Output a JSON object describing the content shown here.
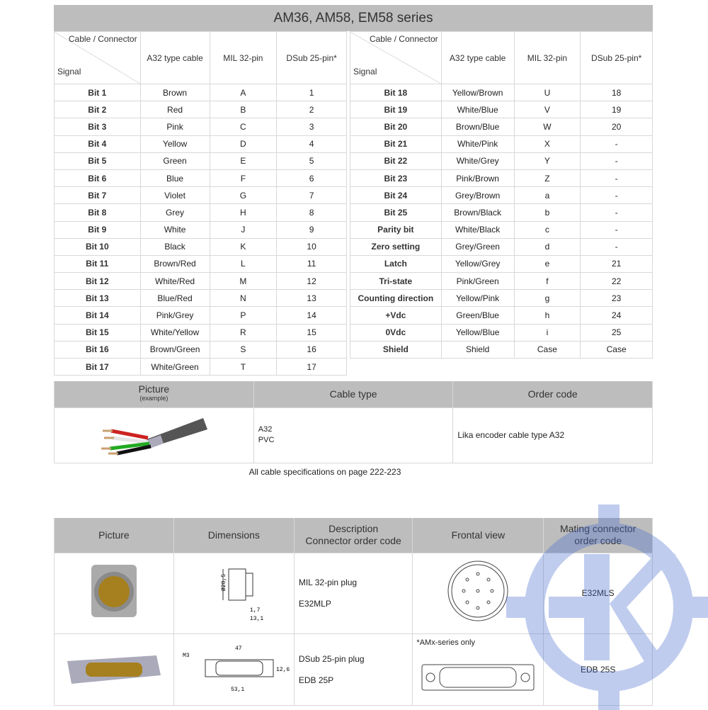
{
  "title": "AM36, AM58, EM58 series",
  "pinout": {
    "header": {
      "cable_connector": "Cable / Connector",
      "signal": "Signal",
      "a32": "A32 type cable",
      "mil": "MIL 32-pin",
      "dsub": "DSub 25-pin*"
    },
    "left_rows": [
      [
        "Bit 1",
        "Brown",
        "A",
        "1"
      ],
      [
        "Bit 2",
        "Red",
        "B",
        "2"
      ],
      [
        "Bit 3",
        "Pink",
        "C",
        "3"
      ],
      [
        "Bit 4",
        "Yellow",
        "D",
        "4"
      ],
      [
        "Bit 5",
        "Green",
        "E",
        "5"
      ],
      [
        "Bit 6",
        "Blue",
        "F",
        "6"
      ],
      [
        "Bit 7",
        "Violet",
        "G",
        "7"
      ],
      [
        "Bit 8",
        "Grey",
        "H",
        "8"
      ],
      [
        "Bit 9",
        "White",
        "J",
        "9"
      ],
      [
        "Bit 10",
        "Black",
        "K",
        "10"
      ],
      [
        "Bit 11",
        "Brown/Red",
        "L",
        "11"
      ],
      [
        "Bit 12",
        "White/Red",
        "M",
        "12"
      ],
      [
        "Bit 13",
        "Blue/Red",
        "N",
        "13"
      ],
      [
        "Bit 14",
        "Pink/Grey",
        "P",
        "14"
      ],
      [
        "Bit 15",
        "White/Yellow",
        "R",
        "15"
      ],
      [
        "Bit 16",
        "Brown/Green",
        "S",
        "16"
      ],
      [
        "Bit 17",
        "White/Green",
        "T",
        "17"
      ]
    ],
    "right_rows": [
      [
        "Bit 18",
        "Yellow/Brown",
        "U",
        "18"
      ],
      [
        "Bit 19",
        "White/Blue",
        "V",
        "19"
      ],
      [
        "Bit 20",
        "Brown/Blue",
        "W",
        "20"
      ],
      [
        "Bit 21",
        "White/Pink",
        "X",
        "-"
      ],
      [
        "Bit 22",
        "White/Grey",
        "Y",
        "-"
      ],
      [
        "Bit 23",
        "Pink/Brown",
        "Z",
        "-"
      ],
      [
        "Bit 24",
        "Grey/Brown",
        "a",
        "-"
      ],
      [
        "Bit 25",
        "Brown/Black",
        "b",
        "-"
      ],
      [
        "Parity bit",
        "White/Black",
        "c",
        "-"
      ],
      [
        "Zero setting",
        "Grey/Green",
        "d",
        "-"
      ],
      [
        "Latch",
        "Yellow/Grey",
        "e",
        "21"
      ],
      [
        "Tri-state",
        "Pink/Green",
        "f",
        "22"
      ],
      [
        "Counting direction",
        "Yellow/Pink",
        "g",
        "23"
      ],
      [
        "+Vdc",
        "Green/Blue",
        "h",
        "24"
      ],
      [
        "0Vdc",
        "Yellow/Blue",
        "i",
        "25"
      ],
      [
        "Shield",
        "Shield",
        "Case",
        "Case"
      ]
    ]
  },
  "cable": {
    "header": {
      "picture": "Picture",
      "picture_sub": "(example)",
      "cable_type": "Cable type",
      "order_code": "Order code"
    },
    "type_line1": "A32",
    "type_line2": "PVC",
    "order": "Lika encoder cable type A32",
    "note": "All cable specifications on page 222-223"
  },
  "connectors": {
    "header": {
      "picture": "Picture",
      "dimensions": "Dimensions",
      "desc1": "Description",
      "desc2": "Connector order code",
      "frontal": "Frontal view",
      "mating1": "Mating connector",
      "mating2": "order code"
    },
    "rows": [
      {
        "desc": "MIL 32-pin plug",
        "code": "E32MLP",
        "mating": "E32MLS",
        "dims": [
          "Ø28,5",
          "1,7",
          "13,1"
        ],
        "note": ""
      },
      {
        "desc": "DSub 25-pin plug",
        "code": "EDB 25P",
        "mating": "EDB 25S",
        "dims": [
          "47",
          "M3",
          "12,6",
          "53,1"
        ],
        "note": "*AMx-series only"
      }
    ]
  },
  "colors": {
    "header_bg": "#bdbdbd",
    "watermark": "#4a6fd0"
  }
}
